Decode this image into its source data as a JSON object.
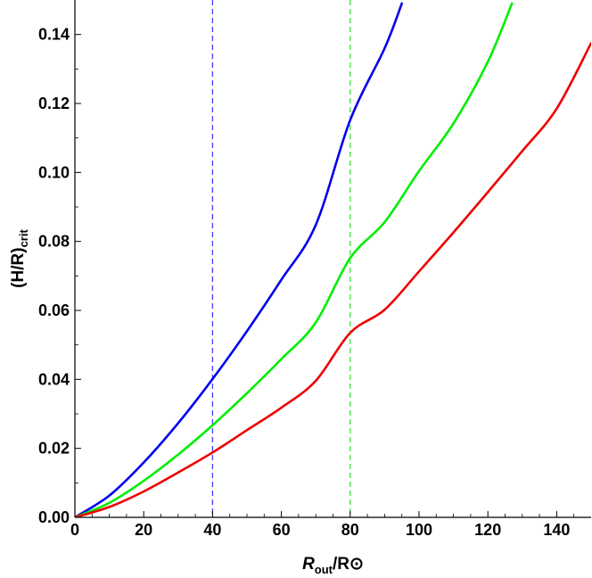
{
  "chart_data": {
    "type": "line",
    "title": "",
    "xlabel": {
      "main": "R",
      "sub": "out",
      "rest": "/R⊙"
    },
    "ylabel": {
      "main": "(H/R)",
      "sub": "crit"
    },
    "xlim": [
      0,
      150
    ],
    "ylim": [
      0,
      0.15
    ],
    "x_ticks": [
      0,
      20,
      40,
      60,
      80,
      100,
      120,
      140
    ],
    "x_tick_labels": [
      "0",
      "20",
      "40",
      "60",
      "80",
      "100",
      "120",
      "140"
    ],
    "y_ticks": [
      0,
      0.02,
      0.04,
      0.06,
      0.08,
      0.1,
      0.12,
      0.14
    ],
    "y_tick_labels": [
      "0.00",
      "0.02",
      "0.04",
      "0.06",
      "0.08",
      "0.10",
      "0.12",
      "0.14"
    ],
    "grid": false,
    "legend": "none",
    "series": [
      {
        "color": "#0000ee",
        "x": [
          0,
          10,
          20,
          30,
          40,
          50,
          60,
          70,
          80,
          90,
          95
        ],
        "y": [
          0,
          0.0063,
          0.0159,
          0.0273,
          0.0401,
          0.054,
          0.0689,
          0.0848,
          0.1152,
          0.136,
          0.149
        ]
      },
      {
        "color": "#00ee00",
        "x": [
          0,
          10,
          20,
          30,
          40,
          50,
          60,
          70,
          80,
          90,
          100,
          110,
          120,
          127
        ],
        "y": [
          0,
          0.0042,
          0.0106,
          0.0182,
          0.0267,
          0.036,
          0.0459,
          0.0565,
          0.0752,
          0.0856,
          0.1004,
          0.1142,
          0.1321,
          0.149
        ]
      },
      {
        "color": "#ee0000",
        "x": [
          0,
          10,
          20,
          30,
          40,
          50,
          60,
          70,
          80,
          90,
          100,
          110,
          120,
          130,
          140,
          150
        ],
        "y": [
          0,
          0.003,
          0.0075,
          0.013,
          0.0188,
          0.0253,
          0.0318,
          0.0396,
          0.0535,
          0.0602,
          0.0713,
          0.0826,
          0.0943,
          0.1062,
          0.1185,
          0.1375
        ]
      }
    ],
    "reference_lines": [
      {
        "x": 40,
        "color": "#4040ff",
        "style": "dashed"
      },
      {
        "x": 80,
        "color": "#40e040",
        "style": "dashed"
      }
    ]
  }
}
